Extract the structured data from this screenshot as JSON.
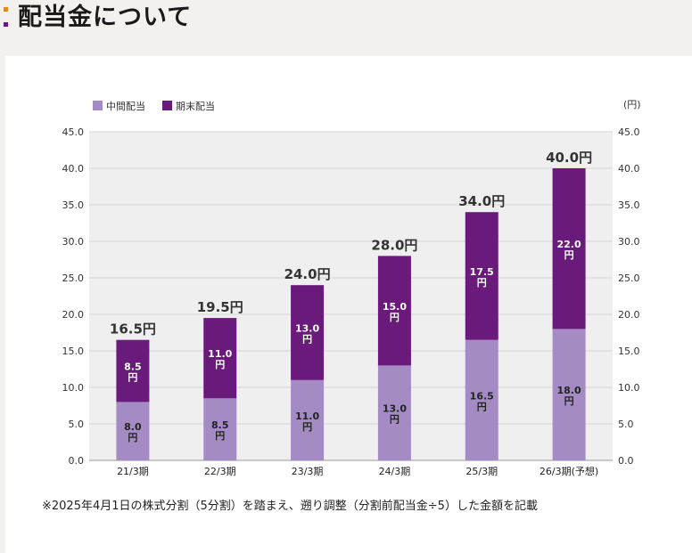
{
  "header": {
    "title": "配当金について"
  },
  "colors": {
    "interim": "#a48bc4",
    "year_end": "#6a1a7a",
    "plot_bg": "#efefef",
    "marker_top": "#e08a2a",
    "marker_bottom": "#6a1a7a"
  },
  "chart_data": {
    "type": "bar",
    "stacked": true,
    "title": "",
    "unit_label": "(円)",
    "categories": [
      "21/3期",
      "22/3期",
      "23/3期",
      "24/3期",
      "25/3期",
      "26/3期(予想)"
    ],
    "series": [
      {
        "name": "中間配当",
        "values": [
          8.0,
          8.5,
          11.0,
          13.0,
          16.5,
          18.0
        ],
        "labels": [
          "8.0",
          "8.5",
          "11.0",
          "13.0",
          "16.5",
          "18.0"
        ]
      },
      {
        "name": "期末配当",
        "values": [
          8.5,
          11.0,
          13.0,
          15.0,
          17.5,
          22.0
        ],
        "labels": [
          "8.5",
          "11.0",
          "13.0",
          "15.0",
          "17.5",
          "22.0"
        ]
      }
    ],
    "totals": [
      "16.5円",
      "19.5円",
      "24.0円",
      "28.0円",
      "34.0円",
      "40.0円"
    ],
    "segment_unit": "円",
    "ylim": [
      0,
      45
    ],
    "yticks": [
      "0.0",
      "5.0",
      "10.0",
      "15.0",
      "20.0",
      "25.0",
      "30.0",
      "35.0",
      "40.0",
      "45.0"
    ],
    "ytick_values": [
      0,
      5,
      10,
      15,
      20,
      25,
      30,
      35,
      40,
      45
    ],
    "legend_position": "top-left",
    "grid": true
  },
  "note": "※2025年4月1日の株式分割（5分割）を踏まえ、遡り調整（分割前配当金÷5）した金額を記載"
}
